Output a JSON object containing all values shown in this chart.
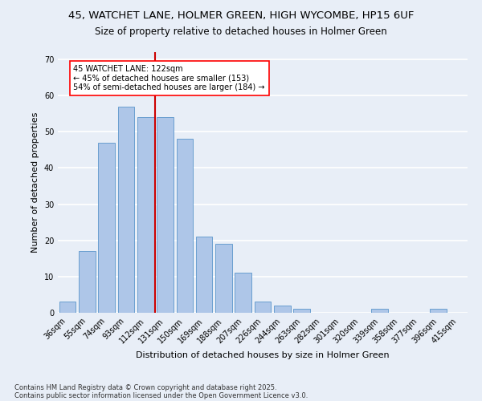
{
  "title1": "45, WATCHET LANE, HOLMER GREEN, HIGH WYCOMBE, HP15 6UF",
  "title2": "Size of property relative to detached houses in Holmer Green",
  "xlabel": "Distribution of detached houses by size in Holmer Green",
  "ylabel": "Number of detached properties",
  "bar_labels": [
    "36sqm",
    "55sqm",
    "74sqm",
    "93sqm",
    "112sqm",
    "131sqm",
    "150sqm",
    "169sqm",
    "188sqm",
    "207sqm",
    "226sqm",
    "244sqm",
    "263sqm",
    "282sqm",
    "301sqm",
    "320sqm",
    "339sqm",
    "358sqm",
    "377sqm",
    "396sqm",
    "415sqm"
  ],
  "bar_values": [
    3,
    17,
    47,
    57,
    54,
    54,
    48,
    21,
    19,
    11,
    3,
    2,
    1,
    0,
    0,
    0,
    1,
    0,
    0,
    1,
    0
  ],
  "bar_color": "#aec6e8",
  "bar_edge_color": "#6a9fd0",
  "bg_color": "#e8eef7",
  "grid_color": "#ffffff",
  "vline_x": 4.5,
  "vline_color": "#cc0000",
  "annotation_text": "45 WATCHET LANE: 122sqm\n← 45% of detached houses are smaller (153)\n54% of semi-detached houses are larger (184) →",
  "ylim": [
    0,
    72
  ],
  "yticks": [
    0,
    10,
    20,
    30,
    40,
    50,
    60,
    70
  ],
  "footnote1": "Contains HM Land Registry data © Crown copyright and database right 2025.",
  "footnote2": "Contains public sector information licensed under the Open Government Licence v3.0.",
  "title_fontsize": 9.5,
  "subtitle_fontsize": 8.5,
  "axis_label_fontsize": 8,
  "tick_fontsize": 7
}
